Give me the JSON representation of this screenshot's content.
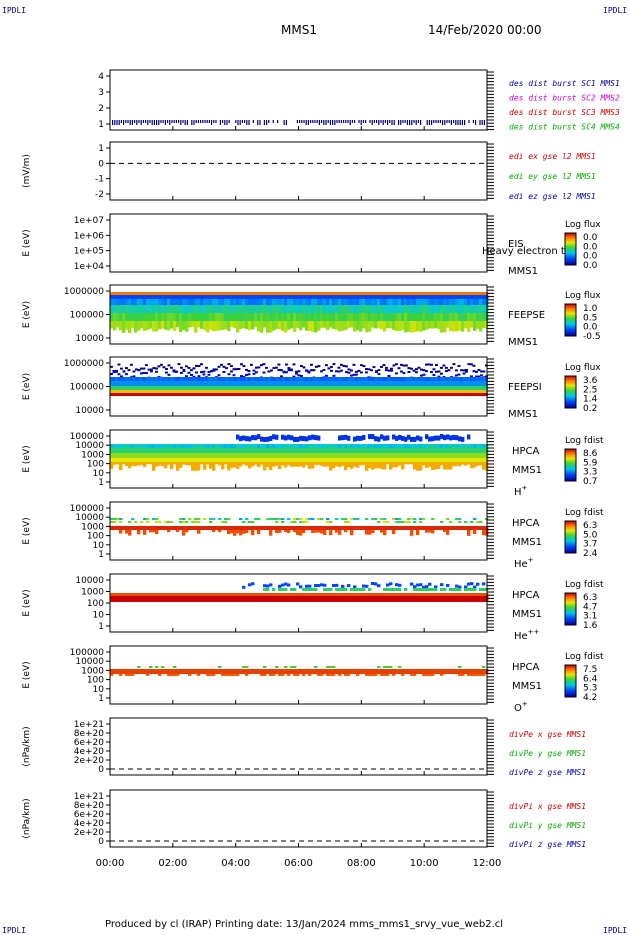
{
  "header": {
    "corner_label": "IPDLI",
    "title": "MMS1",
    "date": "14/Feb/2020 00:00"
  },
  "footer": {
    "text": "Produced by cl (IRAP)   Printing date: 13/Jan/2024   mms_mms1_srvy_vue_web2.cl"
  },
  "x_ticks": [
    "00:00",
    "02:00",
    "04:00",
    "06:00",
    "08:00",
    "10:00",
    "12:00"
  ],
  "chart_data": [
    {
      "type": "line",
      "panel": "dist",
      "yticks": [
        "4",
        "3",
        "2",
        "1"
      ],
      "ylabel": "",
      "legend": [
        {
          "text": "des dist burst SC1 MMS1",
          "color": "#0000aa"
        },
        {
          "text": "des dist burst SC2 MMS2",
          "color": "#cc00cc"
        },
        {
          "text": "des dist burst SC3 MMS3",
          "color": "#cc0000"
        },
        {
          "text": "des dist burst SC4 MMS4",
          "color": "#00aa00"
        }
      ]
    },
    {
      "type": "line",
      "panel": "edi",
      "yticks": [
        "1",
        "0",
        "-1",
        "-2"
      ],
      "ylabel": "(mV/m)",
      "legend": [
        {
          "text": "edi ex gse l2 MMS1",
          "color": "#cc0000"
        },
        {
          "text": "edi ey gse l2 MMS1",
          "color": "#00aa00"
        },
        {
          "text": "edi ez gse l2 MMS1",
          "color": "#0000aa"
        }
      ]
    },
    {
      "type": "heatmap",
      "panel": "eis",
      "yticks": [
        "1e+07",
        "1e+06",
        "1e+05",
        "1e+04"
      ],
      "ylabel": "E (eV)",
      "labels": [
        "EIS",
        "MMS1"
      ],
      "overlay": "Heavy electron to",
      "cbar_title": "Log flux",
      "cbar_ticks": [
        "0.0",
        "0.0",
        "0.0",
        "0.0"
      ]
    },
    {
      "type": "heatmap",
      "panel": "feepse",
      "yticks": [
        "1000000",
        "100000",
        "10000"
      ],
      "ylabel": "E (eV)",
      "labels": [
        "FEEPSE",
        "MMS1"
      ],
      "cbar_title": "Log flux",
      "cbar_ticks": [
        "1.0",
        "0.5",
        "0.0",
        "-0.5"
      ]
    },
    {
      "type": "heatmap",
      "panel": "feepsi",
      "yticks": [
        "1000000",
        "100000",
        "10000"
      ],
      "ylabel": "E (eV)",
      "labels": [
        "FEEPSI",
        "MMS1"
      ],
      "cbar_title": "Log flux",
      "cbar_ticks": [
        "3.6",
        "2.5",
        "1.4",
        "0.2"
      ]
    },
    {
      "type": "heatmap",
      "panel": "hpca_h",
      "yticks": [
        "100000",
        "10000",
        "1000",
        "100",
        "10",
        "1"
      ],
      "ylabel": "E (eV)",
      "labels": [
        "HPCA",
        "MMS1"
      ],
      "species": "H",
      "species_sup": "+",
      "cbar_title": "Log fdist",
      "cbar_ticks": [
        "8.6",
        "5.9",
        "3.3",
        "0.7"
      ]
    },
    {
      "type": "heatmap",
      "panel": "hpca_he",
      "yticks": [
        "100000",
        "10000",
        "1000",
        "100",
        "10",
        "1"
      ],
      "ylabel": "E (eV)",
      "labels": [
        "HPCA",
        "MMS1"
      ],
      "species": "He",
      "species_sup": "+",
      "cbar_title": "Log fdist",
      "cbar_ticks": [
        "6.3",
        "5.0",
        "3.7",
        "2.4"
      ]
    },
    {
      "type": "heatmap",
      "panel": "hpca_hepp",
      "yticks": [
        "10000",
        "1000",
        "100",
        "10",
        "1"
      ],
      "ylabel": "E (eV)",
      "labels": [
        "HPCA",
        "MMS1"
      ],
      "species": "He",
      "species_sup": "++",
      "cbar_title": "Log fdist",
      "cbar_ticks": [
        "6.3",
        "4.7",
        "3.1",
        "1.6"
      ]
    },
    {
      "type": "heatmap",
      "panel": "hpca_o",
      "yticks": [
        "100000",
        "10000",
        "1000",
        "100",
        "10",
        "1"
      ],
      "ylabel": "E (eV)",
      "labels": [
        "HPCA",
        "MMS1"
      ],
      "species": "O",
      "species_sup": "+",
      "cbar_title": "Log fdist",
      "cbar_ticks": [
        "7.5",
        "6.4",
        "5.3",
        "4.2"
      ]
    },
    {
      "type": "line",
      "panel": "divpe",
      "yticks": [
        "1e+21",
        "8e+20",
        "6e+20",
        "4e+20",
        "2e+20",
        "0"
      ],
      "ylabel": "(nPa/km)",
      "legend": [
        {
          "text": "divPe x gse MMS1",
          "color": "#cc0000"
        },
        {
          "text": "divPe y gse MMS1",
          "color": "#00aa00"
        },
        {
          "text": "divPe z gse MMS1",
          "color": "#0000aa"
        }
      ]
    },
    {
      "type": "line",
      "panel": "divpi",
      "yticks": [
        "1e+21",
        "8e+20",
        "6e+20",
        "4e+20",
        "2e+20",
        "0"
      ],
      "ylabel": "(nPa/km)",
      "legend": [
        {
          "text": "divPi x gse MMS1",
          "color": "#cc0000"
        },
        {
          "text": "divPi y gse MMS1",
          "color": "#00aa00"
        },
        {
          "text": "divPi z gse MMS1",
          "color": "#0000aa"
        }
      ]
    }
  ]
}
